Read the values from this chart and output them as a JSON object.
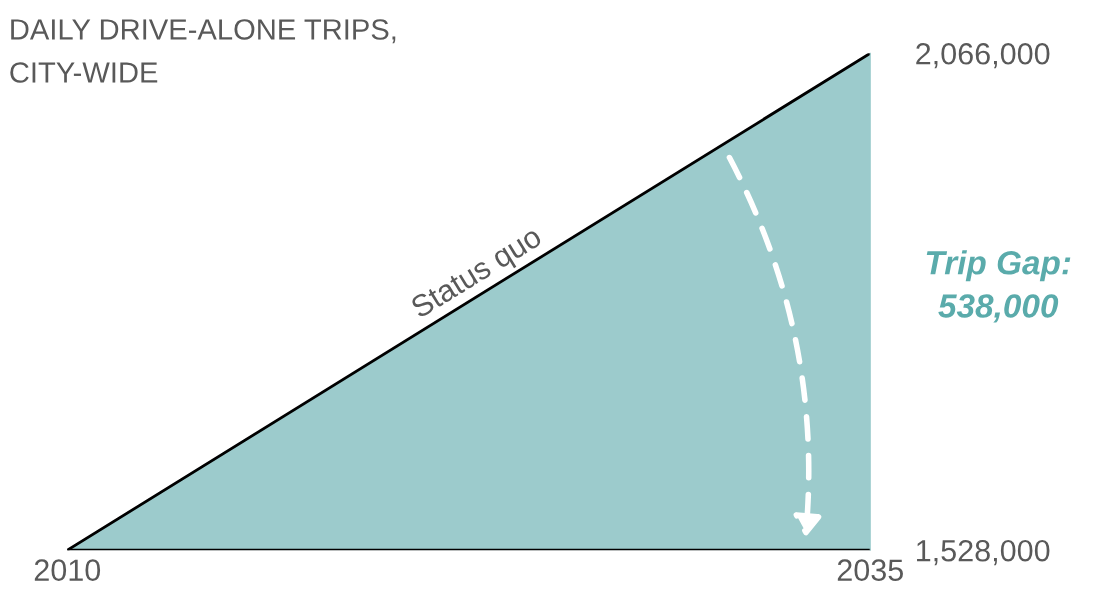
{
  "chart_data": {
    "type": "area",
    "title": "DAILY DRIVE-ALONE TRIPS,\nCITY-WIDE",
    "x": [
      2010,
      2035
    ],
    "series": [
      {
        "name": "Status quo",
        "color": "#9ccbcc",
        "values": [
          1528000,
          2066000
        ]
      }
    ],
    "xlim": [
      2010,
      2035
    ],
    "xticks": [
      2010,
      2035
    ],
    "ylim": [
      1528000,
      2066000
    ],
    "yticks": [
      {
        "value": 1528000,
        "label": "1,528,000"
      },
      {
        "value": 2066000,
        "label": "2,066,000"
      }
    ],
    "annotations": [
      "Trip Gap:\n538,000"
    ],
    "grid": false,
    "legend": false
  }
}
